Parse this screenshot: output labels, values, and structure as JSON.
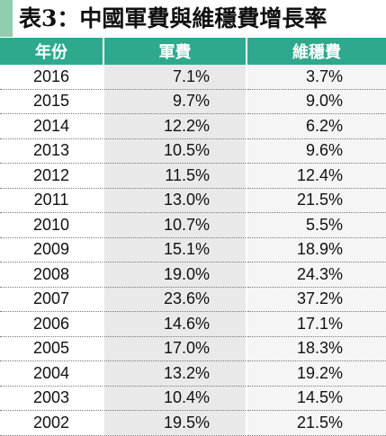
{
  "title": "表3：中國軍費與維穩費增長率",
  "colors": {
    "header_bg": "#2fa98d",
    "header_text": "#ffffff",
    "accent_bar": "#8fcfb0",
    "military_col_bg": "#e9e9e9",
    "stability_col_bg": "#f5f5f5"
  },
  "table": {
    "headers": [
      "年份",
      "軍費",
      "維穩費"
    ],
    "rows": [
      [
        "2016",
        "7.1%",
        "3.7%"
      ],
      [
        "2015",
        "9.7%",
        "9.0%"
      ],
      [
        "2014",
        "12.2%",
        "6.2%"
      ],
      [
        "2013",
        "10.5%",
        "9.6%"
      ],
      [
        "2012",
        "11.5%",
        "12.4%"
      ],
      [
        "2011",
        "13.0%",
        "21.5%"
      ],
      [
        "2010",
        "10.7%",
        "5.5%"
      ],
      [
        "2009",
        "15.1%",
        "18.9%"
      ],
      [
        "2008",
        "19.0%",
        "24.3%"
      ],
      [
        "2007",
        "23.6%",
        "37.2%"
      ],
      [
        "2006",
        "14.6%",
        "17.1%"
      ],
      [
        "2005",
        "17.0%",
        "18.3%"
      ],
      [
        "2004",
        "13.2%",
        "19.2%"
      ],
      [
        "2003",
        "10.4%",
        "14.5%"
      ],
      [
        "2002",
        "19.5%",
        "21.5%"
      ]
    ]
  }
}
